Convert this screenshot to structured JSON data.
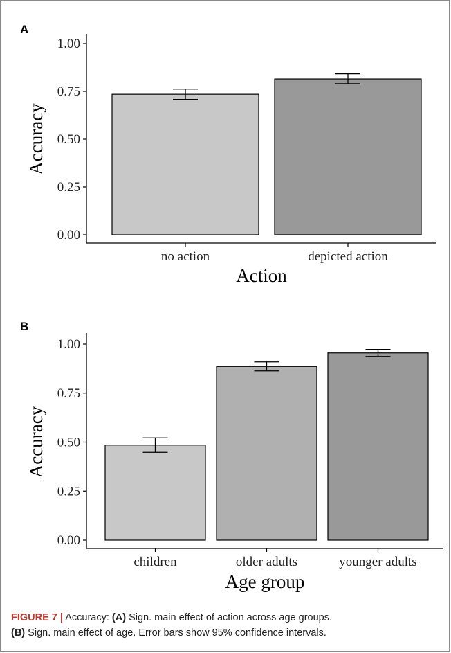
{
  "chart_data": [
    {
      "panel": "A",
      "type": "bar",
      "categories": [
        "no action",
        "depicted action"
      ],
      "values": [
        0.735,
        0.815
      ],
      "ci": [
        [
          0.708,
          0.762
        ],
        [
          0.79,
          0.842
        ]
      ],
      "colors": [
        "#c8c8c8",
        "#999999"
      ],
      "xlabel": "Action",
      "ylabel": "Accuracy",
      "ylim": [
        0,
        1
      ],
      "yticks": [
        "0.00",
        "0.25",
        "0.50",
        "0.75",
        "1.00"
      ],
      "ytick_values": [
        0,
        0.25,
        0.5,
        0.75,
        1.0
      ],
      "grid": false
    },
    {
      "panel": "B",
      "type": "bar",
      "categories": [
        "children",
        "older adults",
        "younger adults"
      ],
      "values": [
        0.485,
        0.886,
        0.955
      ],
      "ci": [
        [
          0.448,
          0.522
        ],
        [
          0.863,
          0.909
        ],
        [
          0.937,
          0.973
        ]
      ],
      "colors": [
        "#c8c8c8",
        "#b0b0b0",
        "#999999"
      ],
      "xlabel": "Age group",
      "ylabel": "Accuracy",
      "ylim": [
        0,
        1
      ],
      "yticks": [
        "0.00",
        "0.25",
        "0.50",
        "0.75",
        "1.00"
      ],
      "ytick_values": [
        0,
        0.25,
        0.5,
        0.75,
        1.0
      ],
      "grid": false
    }
  ],
  "caption": {
    "label": "FIGURE 7 |",
    "lead": "Accuracy:",
    "a_tag": "(A)",
    "a_text": "Sign. main effect of action across age groups.",
    "b_tag": "(B)",
    "b_text": "Sign. main effect of age. Error bars show 95% confidence intervals."
  }
}
